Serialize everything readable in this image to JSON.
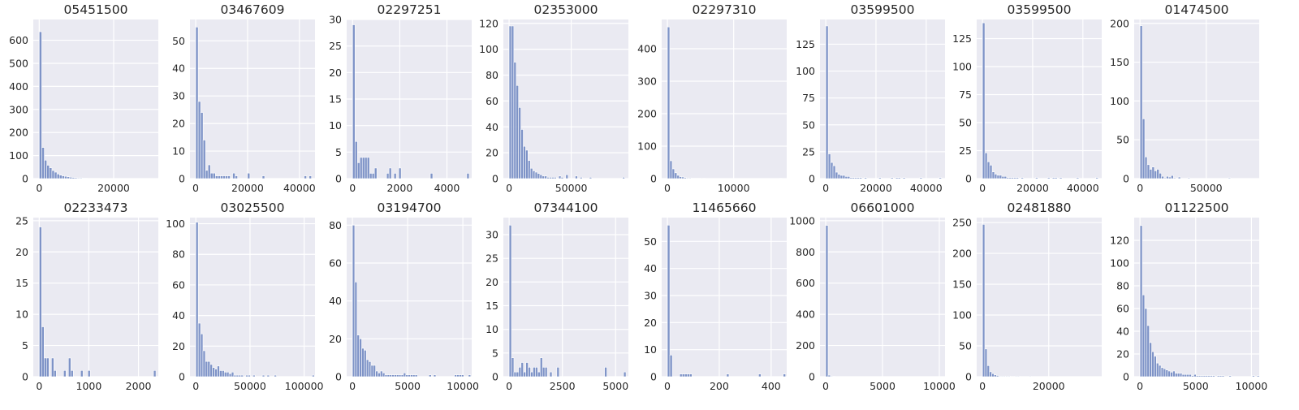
{
  "chart_data": [
    {
      "type": "bar",
      "title": "05451500",
      "grid": true,
      "xlim": [
        -1600,
        32000
      ],
      "ylim": [
        0,
        690
      ],
      "xticks": [
        0,
        20000
      ],
      "xtick_labels": [
        "0",
        "20000"
      ],
      "yticks": [
        0,
        100,
        200,
        300,
        400,
        500,
        600
      ],
      "ytick_labels": [
        "0",
        "100",
        "200",
        "300",
        "400",
        "500",
        "600"
      ],
      "bin_start": 0,
      "bin_width": 680,
      "values": [
        637,
        135,
        80,
        58,
        47,
        35,
        28,
        20,
        15,
        12,
        10,
        8,
        6,
        5,
        4,
        3,
        3,
        2,
        2,
        1,
        1,
        1,
        1,
        1,
        0,
        0,
        0,
        0,
        0,
        0,
        0,
        0,
        0,
        0,
        0,
        0,
        0,
        0,
        0,
        0,
        0,
        0,
        0,
        0,
        0,
        0
      ]
    },
    {
      "type": "bar",
      "title": "03467609",
      "grid": true,
      "xlim": [
        -2200,
        46000
      ],
      "ylim": [
        0,
        57.75
      ],
      "xticks": [
        0,
        20000,
        40000
      ],
      "xtick_labels": [
        "0",
        "20000",
        "40000"
      ],
      "yticks": [
        0,
        10,
        20,
        30,
        40,
        50
      ],
      "ytick_labels": [
        "0",
        "10",
        "20",
        "30",
        "40",
        "50"
      ],
      "bin_start": 0,
      "bin_width": 950,
      "values": [
        55,
        28,
        24,
        14,
        3,
        5,
        2,
        2,
        1,
        1,
        1,
        1,
        1,
        1,
        0,
        2,
        1,
        0,
        0,
        0,
        0,
        2,
        0,
        0,
        0,
        0,
        0,
        1,
        0,
        0,
        0,
        0,
        0,
        0,
        0,
        0,
        0,
        0,
        0,
        0,
        0,
        0,
        0,
        0,
        1,
        0,
        1
      ]
    },
    {
      "type": "bar",
      "title": "02297251",
      "grid": true,
      "xlim": [
        -250,
        5050
      ],
      "ylim": [
        0,
        30
      ],
      "xticks": [
        0,
        2000,
        4000
      ],
      "xtick_labels": [
        "0",
        "2000",
        "4000"
      ],
      "yticks": [
        0,
        5,
        10,
        15,
        20,
        25,
        30
      ],
      "ytick_labels": [
        "0",
        "5",
        "10",
        "15",
        "20",
        "25",
        "30"
      ],
      "bin_start": 0,
      "bin_width": 103,
      "values": [
        29,
        7,
        3,
        4,
        4,
        4,
        4,
        1,
        1,
        2,
        0,
        0,
        0,
        0,
        1,
        2,
        0,
        1,
        0,
        2,
        0,
        0,
        0,
        0,
        0,
        0,
        0,
        0,
        0,
        0,
        0,
        0,
        1,
        0,
        0,
        0,
        0,
        0,
        0,
        0,
        0,
        0,
        0,
        0,
        0,
        0,
        0,
        1
      ]
    },
    {
      "type": "bar",
      "title": "02353000",
      "grid": true,
      "xlim": [
        -4600,
        96000
      ],
      "ylim": [
        0,
        123
      ],
      "xticks": [
        0,
        50000
      ],
      "xtick_labels": [
        "0",
        "50000"
      ],
      "yticks": [
        0,
        20,
        40,
        60,
        80,
        100,
        120
      ],
      "ytick_labels": [
        "0",
        "20",
        "40",
        "60",
        "80",
        "100",
        "120"
      ],
      "bin_start": 0,
      "bin_width": 1900,
      "values": [
        118,
        118,
        90,
        72,
        55,
        38,
        25,
        22,
        14,
        8,
        6,
        5,
        4,
        3,
        2,
        2,
        1,
        1,
        1,
        1,
        0,
        2,
        1,
        0,
        3,
        0,
        0,
        0,
        2,
        0,
        1,
        0,
        0,
        0,
        1,
        0,
        0,
        0,
        0,
        0,
        0,
        0,
        0,
        0,
        0,
        0,
        0,
        0,
        1
      ]
    },
    {
      "type": "bar",
      "title": "02297310",
      "grid": true,
      "xlim": [
        -860,
        18000
      ],
      "ylim": [
        0,
        490
      ],
      "xticks": [
        0,
        10000
      ],
      "xtick_labels": [
        "0",
        "10000"
      ],
      "yticks": [
        0,
        100,
        200,
        300,
        400
      ],
      "ytick_labels": [
        "0",
        "100",
        "200",
        "300",
        "400"
      ],
      "bin_start": 0,
      "bin_width": 360,
      "values": [
        467,
        55,
        30,
        18,
        10,
        6,
        5,
        3,
        2,
        2,
        1,
        1,
        1,
        1,
        0,
        1,
        0,
        0,
        0,
        0,
        0,
        0,
        0,
        0,
        0,
        0,
        0,
        0,
        0,
        0,
        0,
        0,
        0,
        0,
        0,
        0,
        0,
        0,
        0,
        0,
        0,
        0,
        0,
        0,
        0,
        0,
        0,
        1
      ]
    },
    {
      "type": "bar",
      "title": "03599500",
      "grid": true,
      "xlim": [
        -2300,
        47500
      ],
      "ylim": [
        0,
        148
      ],
      "xticks": [
        0,
        20000,
        40000
      ],
      "xtick_labels": [
        "0",
        "20000",
        "40000"
      ],
      "yticks": [
        0,
        25,
        50,
        75,
        100,
        125
      ],
      "ytick_labels": [
        "0",
        "25",
        "50",
        "75",
        "100",
        "125"
      ],
      "bin_start": 0,
      "bin_width": 960,
      "values": [
        142,
        23,
        15,
        12,
        6,
        4,
        3,
        3,
        2,
        2,
        1,
        1,
        1,
        1,
        1,
        0,
        1,
        0,
        0,
        0,
        0,
        0,
        1,
        0,
        0,
        0,
        0,
        1,
        0,
        1,
        1,
        0,
        1,
        0,
        0,
        0,
        0,
        0,
        0,
        1,
        0,
        0,
        0,
        0,
        0,
        0,
        0,
        1
      ]
    },
    {
      "type": "bar",
      "title": "03599500",
      "grid": true,
      "xlim": [
        -2300,
        47500
      ],
      "ylim": [
        0,
        142
      ],
      "xticks": [
        0,
        20000,
        40000
      ],
      "xtick_labels": [
        "0",
        "20000",
        "40000"
      ],
      "yticks": [
        0,
        25,
        50,
        75,
        100,
        125
      ],
      "ytick_labels": [
        "0",
        "25",
        "50",
        "75",
        "100",
        "125"
      ],
      "bin_start": 0,
      "bin_width": 960,
      "values": [
        139,
        23,
        15,
        12,
        6,
        4,
        3,
        3,
        2,
        2,
        1,
        1,
        1,
        1,
        1,
        0,
        1,
        0,
        0,
        0,
        0,
        0,
        1,
        0,
        0,
        0,
        0,
        1,
        0,
        1,
        1,
        0,
        1,
        0,
        0,
        0,
        0,
        0,
        0,
        1,
        0,
        0,
        0,
        0,
        0,
        0,
        0,
        1
      ]
    },
    {
      "type": "bar",
      "title": "01474500",
      "grid": true,
      "xlim": [
        -4400,
        90000
      ],
      "ylim": [
        0,
        205
      ],
      "xticks": [
        0,
        50000
      ],
      "xtick_labels": [
        "0",
        "50000"
      ],
      "yticks": [
        0,
        50,
        100,
        150,
        200
      ],
      "ytick_labels": [
        "0",
        "50",
        "100",
        "150",
        "200"
      ],
      "bin_start": 0,
      "bin_width": 1800,
      "values": [
        197,
        77,
        28,
        18,
        12,
        15,
        10,
        12,
        7,
        3,
        1,
        3,
        2,
        4,
        1,
        0,
        2,
        0,
        0,
        0,
        1,
        0,
        0,
        0,
        0,
        0,
        0,
        0,
        0,
        0,
        0,
        0,
        0,
        0,
        0,
        0,
        0,
        1,
        0,
        0,
        0,
        0,
        0,
        0,
        0,
        0,
        0,
        0,
        0
      ]
    },
    {
      "type": "bar",
      "title": "02233473",
      "grid": true,
      "xlim": [
        -120,
        2400
      ],
      "ylim": [
        0,
        25.5
      ],
      "xticks": [
        0,
        1000,
        2000
      ],
      "xtick_labels": [
        "0",
        "1000",
        "2000"
      ],
      "yticks": [
        0,
        5,
        10,
        15,
        20,
        25
      ],
      "ytick_labels": [
        "0",
        "5",
        "10",
        "15",
        "20",
        "25"
      ],
      "bin_start": 0,
      "bin_width": 49,
      "values": [
        24,
        8,
        3,
        3,
        0,
        3,
        1,
        0,
        0,
        0,
        1,
        0,
        3,
        1,
        0,
        0,
        0,
        1,
        0,
        0,
        1,
        0,
        0,
        0,
        0,
        0,
        0,
        0,
        0,
        0,
        0,
        0,
        0,
        0,
        0,
        0,
        0,
        0,
        0,
        0,
        0,
        0,
        0,
        0,
        0,
        0,
        0,
        1
      ]
    },
    {
      "type": "bar",
      "title": "03025500",
      "grid": true,
      "xlim": [
        -5400,
        110000
      ],
      "ylim": [
        0,
        104
      ],
      "xticks": [
        0,
        50000,
        100000
      ],
      "xtick_labels": [
        "0",
        "50000",
        "100000"
      ],
      "yticks": [
        0,
        20,
        40,
        60,
        80,
        100
      ],
      "ytick_labels": [
        "0",
        "20",
        "40",
        "60",
        "80",
        "100"
      ],
      "bin_start": 0,
      "bin_width": 2190,
      "values": [
        101,
        35,
        28,
        17,
        10,
        10,
        8,
        6,
        5,
        7,
        4,
        4,
        3,
        3,
        2,
        3,
        1,
        1,
        1,
        1,
        0,
        1,
        1,
        0,
        1,
        0,
        0,
        0,
        1,
        0,
        1,
        0,
        0,
        1,
        0,
        0,
        0,
        0,
        0,
        0,
        0,
        0,
        0,
        0,
        0,
        0,
        0,
        0,
        0,
        1
      ]
    },
    {
      "type": "bar",
      "title": "03194700",
      "grid": true,
      "xlim": [
        -520,
        10800
      ],
      "ylim": [
        0,
        84
      ],
      "xticks": [
        0,
        5000,
        10000
      ],
      "xtick_labels": [
        "0",
        "5000",
        "10000"
      ],
      "yticks": [
        0,
        20,
        40,
        60,
        80
      ],
      "ytick_labels": [
        "0",
        "20",
        "40",
        "60",
        "80"
      ],
      "bin_start": 0,
      "bin_width": 210,
      "values": [
        80,
        50,
        22,
        20,
        15,
        14,
        9,
        8,
        6,
        6,
        3,
        2,
        3,
        2,
        1,
        1,
        1,
        1,
        1,
        1,
        1,
        1,
        2,
        1,
        1,
        1,
        1,
        1,
        0,
        0,
        0,
        0,
        0,
        1,
        0,
        1,
        0,
        0,
        0,
        0,
        0,
        0,
        0,
        0,
        1,
        1,
        1,
        1,
        0,
        0,
        1
      ]
    },
    {
      "type": "bar",
      "title": "07344100",
      "grid": true,
      "xlim": [
        -270,
        5600
      ],
      "ylim": [
        0,
        33.6
      ],
      "xticks": [
        0,
        2500,
        5000
      ],
      "xtick_labels": [
        "0",
        "2500",
        "5000"
      ],
      "yticks": [
        0,
        5,
        10,
        15,
        20,
        25,
        30
      ],
      "ytick_labels": [
        "0",
        "5",
        "10",
        "15",
        "20",
        "25",
        "30"
      ],
      "bin_start": 0,
      "bin_width": 112,
      "values": [
        32,
        4,
        1,
        1,
        2,
        3,
        1,
        3,
        2,
        1,
        2,
        2,
        1,
        4,
        2,
        2,
        0,
        1,
        0,
        0,
        2,
        0,
        0,
        0,
        0,
        0,
        0,
        0,
        0,
        0,
        0,
        0,
        0,
        0,
        0,
        0,
        0,
        0,
        0,
        0,
        2,
        0,
        0,
        0,
        0,
        0,
        0,
        0,
        1
      ]
    },
    {
      "type": "bar",
      "title": "11465660",
      "grid": true,
      "xlim": [
        -22,
        460
      ],
      "ylim": [
        0,
        58.8
      ],
      "xticks": [
        0,
        200,
        400
      ],
      "xtick_labels": [
        "0",
        "200",
        "400"
      ],
      "yticks": [
        0,
        10,
        20,
        30,
        40,
        50
      ],
      "ytick_labels": [
        "0",
        "10",
        "20",
        "30",
        "40",
        "50"
      ],
      "bin_start": 0,
      "bin_width": 9.5,
      "values": [
        56,
        8,
        0,
        0,
        0,
        1,
        1,
        1,
        1,
        1,
        0,
        0,
        0,
        0,
        0,
        0,
        0,
        0,
        0,
        0,
        0,
        0,
        0,
        0,
        1,
        0,
        0,
        0,
        0,
        0,
        0,
        0,
        0,
        0,
        0,
        0,
        0,
        1,
        0,
        0,
        0,
        0,
        0,
        0,
        0,
        0,
        0,
        1
      ]
    },
    {
      "type": "bar",
      "title": "06601000",
      "grid": true,
      "xlim": [
        -500,
        10500
      ],
      "ylim": [
        0,
        1020
      ],
      "xticks": [
        0,
        5000,
        10000
      ],
      "xtick_labels": [
        "0",
        "5000",
        "10000"
      ],
      "yticks": [
        0,
        200,
        400,
        600,
        800,
        1000
      ],
      "ytick_labels": [
        "0",
        "200",
        "400",
        "600",
        "800",
        "1000"
      ],
      "bin_start": 0,
      "bin_width": 210,
      "values": [
        970,
        10,
        4,
        2,
        1,
        0,
        0,
        0,
        0,
        0,
        0,
        0,
        0,
        0,
        0,
        0,
        0,
        0,
        0,
        0,
        0,
        0,
        0,
        0,
        0,
        0,
        0,
        0,
        0,
        0,
        0,
        0,
        0,
        0,
        0,
        0,
        0,
        0,
        0,
        0,
        0,
        0,
        0,
        0,
        0,
        0,
        0,
        0,
        0,
        0
      ]
    },
    {
      "type": "bar",
      "title": "02481880",
      "grid": true,
      "xlim": [
        -1750,
        36000
      ],
      "ylim": [
        0,
        258
      ],
      "xticks": [
        0,
        20000
      ],
      "xtick_labels": [
        "0",
        "20000"
      ],
      "yticks": [
        0,
        50,
        100,
        150,
        200,
        250
      ],
      "ytick_labels": [
        "0",
        "50",
        "100",
        "150",
        "200",
        "250"
      ],
      "bin_start": 0,
      "bin_width": 700,
      "values": [
        247,
        45,
        18,
        8,
        5,
        3,
        2,
        1,
        1,
        1,
        1,
        1,
        0,
        0,
        1,
        1,
        0,
        0,
        0,
        0,
        1,
        0,
        0,
        0,
        0,
        0,
        0,
        0,
        0,
        0,
        0,
        0,
        0,
        0,
        0,
        0,
        0,
        0,
        0,
        0,
        0,
        0,
        0,
        0,
        0,
        0,
        0,
        0,
        0,
        0
      ]
    },
    {
      "type": "bar",
      "title": "01122500",
      "grid": true,
      "xlim": [
        -520,
        10700
      ],
      "ylim": [
        0,
        140
      ],
      "xticks": [
        0,
        5000,
        10000
      ],
      "xtick_labels": [
        "0",
        "5000",
        "10000"
      ],
      "yticks": [
        0,
        20,
        40,
        60,
        80,
        100,
        120
      ],
      "ytick_labels": [
        "0",
        "20",
        "40",
        "60",
        "80",
        "100",
        "120"
      ],
      "bin_start": 0,
      "bin_width": 210,
      "values": [
        133,
        72,
        60,
        45,
        30,
        22,
        18,
        12,
        10,
        8,
        7,
        6,
        5,
        4,
        5,
        3,
        3,
        3,
        2,
        2,
        2,
        2,
        1,
        2,
        1,
        1,
        1,
        1,
        1,
        1,
        1,
        1,
        0,
        1,
        1,
        1,
        0,
        0,
        1,
        0,
        0,
        0,
        0,
        0,
        0,
        0,
        0,
        0,
        1,
        0,
        1
      ]
    }
  ]
}
